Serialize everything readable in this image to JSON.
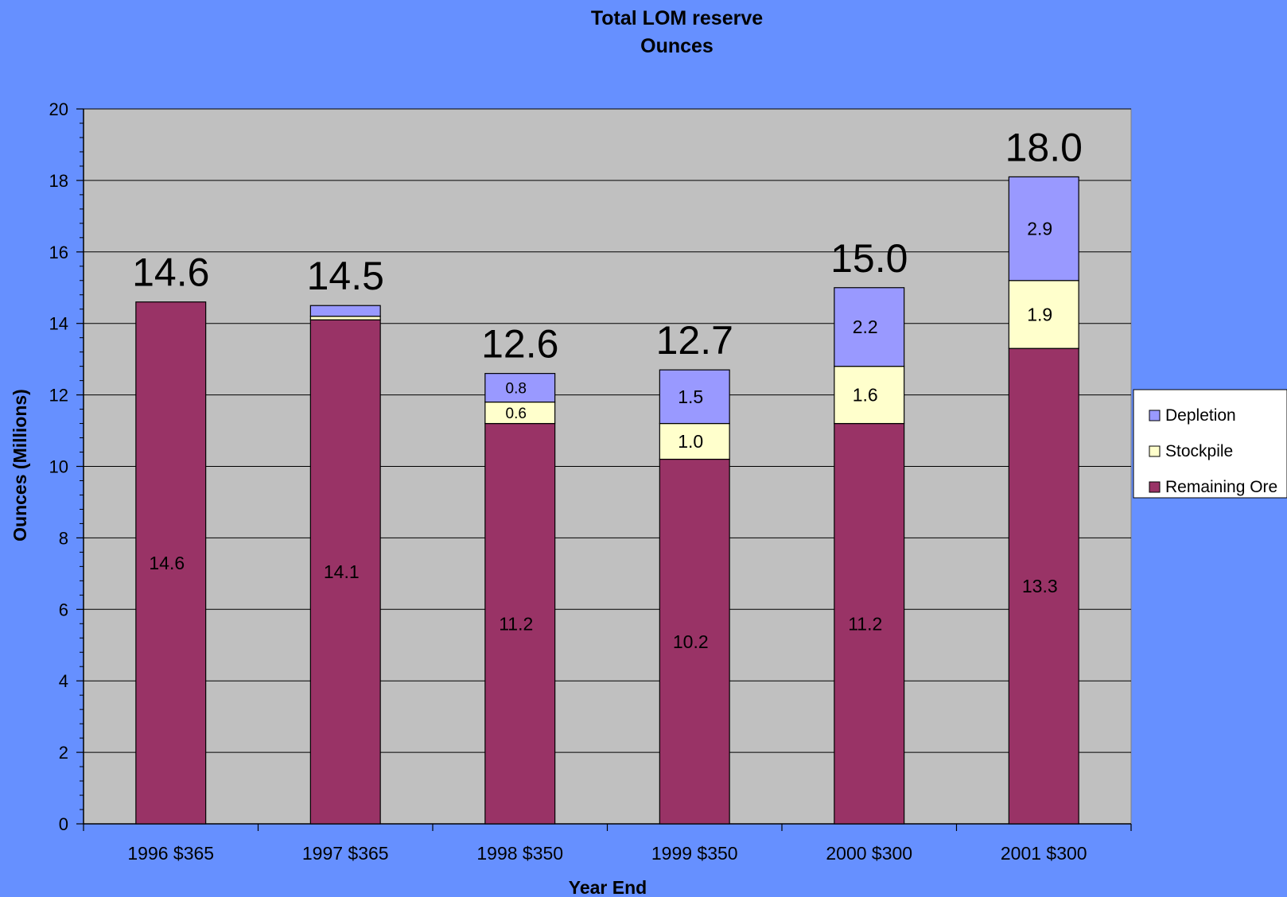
{
  "chart_data": {
    "type": "bar",
    "stacked": true,
    "title": "Total LOM reserve",
    "subtitle": "Ounces",
    "xlabel": "Year End",
    "ylabel": "Ounces (Millions)",
    "ylim": [
      0,
      20
    ],
    "yticks": [
      0,
      2,
      4,
      6,
      8,
      10,
      12,
      14,
      16,
      18,
      20
    ],
    "grid": true,
    "legend_position": "right",
    "categories": [
      "1996 $365",
      "1997 $365",
      "1998 $350",
      "1999 $350",
      "2000 $300",
      "2001 $300"
    ],
    "series": [
      {
        "name": "Remaining Ore",
        "color": "#993366",
        "values": [
          14.6,
          14.1,
          11.2,
          10.2,
          11.2,
          13.3
        ],
        "labels": [
          "14.6",
          "14.1",
          "11.2",
          "10.2",
          "11.2",
          "13.3"
        ]
      },
      {
        "name": "Stockpile",
        "color": "#ffffcc",
        "values": [
          0.0,
          0.1,
          0.6,
          1.0,
          1.6,
          1.9
        ],
        "labels": [
          "",
          "",
          "0.6",
          "1.0",
          "1.6",
          "1.9"
        ]
      },
      {
        "name": "Depletion",
        "color": "#9999ff",
        "values": [
          0.0,
          0.3,
          0.8,
          1.5,
          2.2,
          2.9
        ],
        "labels": [
          "",
          "",
          "0.8",
          "1.5",
          "2.2",
          "2.9"
        ]
      }
    ],
    "totals": [
      "14.6",
      "14.5",
      "12.6",
      "12.7",
      "15.0",
      "18.0"
    ],
    "legend_order": [
      "Depletion",
      "Stockpile",
      "Remaining Ore"
    ],
    "colors": {
      "background": "#6690ff",
      "plot_area": "#c0c0c0",
      "gridline": "#000000"
    }
  }
}
